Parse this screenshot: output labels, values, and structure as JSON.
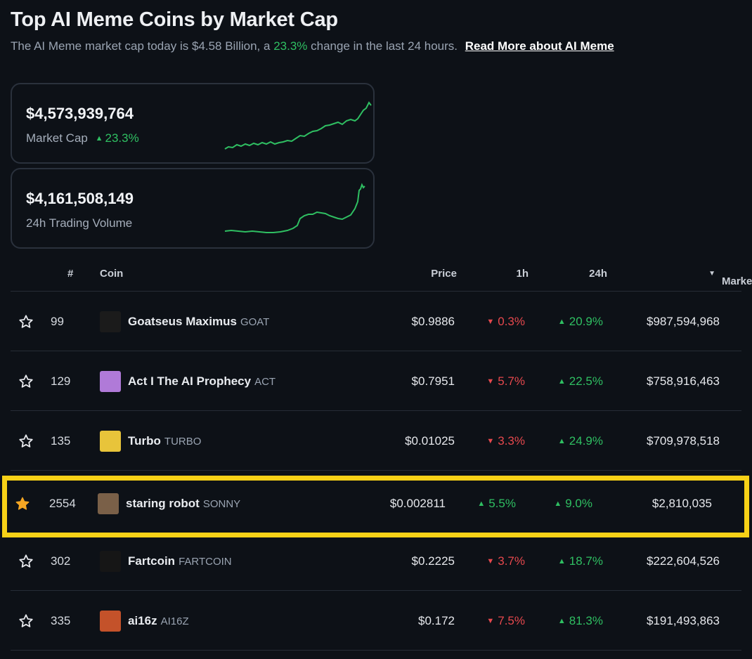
{
  "header": {
    "title": "Top AI Meme Coins by Market Cap",
    "subtitle_prefix": "The AI Meme market cap today is $4.58 Billion, a",
    "subtitle_change": "23.3%",
    "subtitle_suffix": "change in the last 24 hours.",
    "read_more": "Read More about AI Meme"
  },
  "stats": {
    "market_cap": {
      "value": "$4,573,939,764",
      "label": "Market Cap",
      "change": "23.3%"
    },
    "volume": {
      "value": "$4,161,508,149",
      "label": "24h Trading Volume"
    }
  },
  "table": {
    "headers": {
      "num": "#",
      "coin": "Coin",
      "price": "Price",
      "h1": "1h",
      "h24": "24h",
      "mcap": "Market Cap"
    },
    "rows": [
      {
        "rank": "99",
        "name": "Goatseus Maximus",
        "symbol": "GOAT",
        "price": "$0.9886",
        "h1": "0.3%",
        "h1_dir": "down",
        "h24": "20.9%",
        "h24_dir": "up",
        "mcap": "$987,594,968",
        "starred": false,
        "logo_color": "#1b1b1b"
      },
      {
        "rank": "129",
        "name": "Act I The AI Prophecy",
        "symbol": "ACT",
        "price": "$0.7951",
        "h1": "5.7%",
        "h1_dir": "down",
        "h24": "22.5%",
        "h24_dir": "up",
        "mcap": "$758,916,463",
        "starred": false,
        "logo_color": "#b07ad8"
      },
      {
        "rank": "135",
        "name": "Turbo",
        "symbol": "TURBO",
        "price": "$0.01025",
        "h1": "3.3%",
        "h1_dir": "down",
        "h24": "24.9%",
        "h24_dir": "up",
        "mcap": "$709,978,518",
        "starred": false,
        "logo_color": "#e8c43a"
      },
      {
        "rank": "2554",
        "name": "staring robot",
        "symbol": "SONNY",
        "price": "$0.002811",
        "h1": "5.5%",
        "h1_dir": "up",
        "h24": "9.0%",
        "h24_dir": "up",
        "mcap": "$2,810,035",
        "starred": true,
        "logo_color": "#7a6048"
      },
      {
        "rank": "302",
        "name": "Fartcoin",
        "symbol": "FARTCOIN",
        "price": "$0.2225",
        "h1": "3.7%",
        "h1_dir": "down",
        "h24": "18.7%",
        "h24_dir": "up",
        "mcap": "$222,604,526",
        "starred": false,
        "logo_color": "#161616"
      },
      {
        "rank": "335",
        "name": "ai16z",
        "symbol": "AI16Z",
        "price": "$0.172",
        "h1": "7.5%",
        "h1_dir": "down",
        "h24": "81.3%",
        "h24_dir": "up",
        "mcap": "$191,493,863",
        "starred": false,
        "logo_color": "#c4522a"
      }
    ]
  },
  "colors": {
    "up": "#2fbf62",
    "down": "#e5484d",
    "highlight": "#f7d117",
    "star_filled": "#f5a623"
  },
  "icons": {
    "star": "star-icon",
    "sort": "sort-desc-icon",
    "up": "triangle-up-icon",
    "down": "triangle-down-icon"
  }
}
